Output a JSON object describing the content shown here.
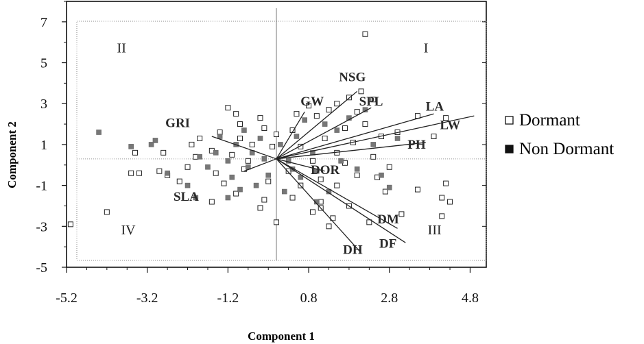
{
  "chart_data": {
    "type": "scatter",
    "xlabel": "Component 1",
    "ylabel": "Component 2",
    "xlim": [
      -5.2,
      5.2
    ],
    "ylim": [
      -5,
      8
    ],
    "x_ticks": [
      "-5.2",
      "-3.2",
      "-1.2",
      "0.8",
      "2.8",
      "4.8"
    ],
    "y_ticks": [
      "7",
      "5",
      "3",
      "1",
      "-1",
      "-3",
      "-5"
    ],
    "quadrant_labels": [
      {
        "text": "I",
        "x": 3.65,
        "y": 5.5
      },
      {
        "text": "II",
        "x": -3.95,
        "y": 5.5
      },
      {
        "text": "III",
        "x": 3.75,
        "y": -3.4
      },
      {
        "text": "IV",
        "x": -3.85,
        "y": -3.4
      }
    ],
    "vectors": [
      {
        "name": "NSG",
        "x": 2.0,
        "y": 3.6,
        "label_x": 1.55,
        "label_y": 4.1
      },
      {
        "name": "GW",
        "x": 0.7,
        "y": 2.6,
        "label_x": 0.6,
        "label_y": 2.9
      },
      {
        "name": "SPL",
        "x": 2.35,
        "y": 2.8,
        "label_x": 2.05,
        "label_y": 2.9
      },
      {
        "name": "LA",
        "x": 3.9,
        "y": 2.5,
        "label_x": 3.7,
        "label_y": 2.65
      },
      {
        "name": "LW",
        "x": 4.9,
        "y": 2.4,
        "label_x": 4.05,
        "label_y": 1.75
      },
      {
        "name": "PH",
        "x": 3.7,
        "y": 1.1,
        "label_x": 3.25,
        "label_y": 0.8
      },
      {
        "name": "DOR",
        "x": 1.2,
        "y": -0.3,
        "label_x": 0.85,
        "label_y": -0.45
      },
      {
        "name": "DM",
        "x": 3.0,
        "y": -3.1,
        "label_x": 2.5,
        "label_y": -2.85
      },
      {
        "name": "DF",
        "x": 3.2,
        "y": -3.8,
        "label_x": 2.55,
        "label_y": -4.05
      },
      {
        "name": "DH",
        "x": 2.1,
        "y": -4.3,
        "label_x": 1.65,
        "label_y": -4.35
      },
      {
        "name": "GRI",
        "x": -1.6,
        "y": 1.4,
        "label_x": -2.75,
        "label_y": 1.85
      },
      {
        "name": "SLA",
        "x": -0.8,
        "y": -0.3,
        "label_x": -2.55,
        "label_y": -1.75
      }
    ],
    "series": [
      {
        "name": "Dormant",
        "marker": "open-square",
        "points": [
          [
            2.2,
            6.4
          ],
          [
            2.1,
            3.6
          ],
          [
            2.4,
            3.2
          ],
          [
            1.8,
            3.3
          ],
          [
            1.5,
            3.0
          ],
          [
            0.8,
            2.9
          ],
          [
            1.3,
            2.7
          ],
          [
            -1.2,
            2.8
          ],
          [
            -1.0,
            2.5
          ],
          [
            0.5,
            2.5
          ],
          [
            1.0,
            2.4
          ],
          [
            2.0,
            2.6
          ],
          [
            3.5,
            2.4
          ],
          [
            4.2,
            2.3
          ],
          [
            -0.9,
            2.0
          ],
          [
            -0.4,
            2.3
          ],
          [
            -0.3,
            1.8
          ],
          [
            1.7,
            1.8
          ],
          [
            2.2,
            2.0
          ],
          [
            3.0,
            1.6
          ],
          [
            -1.4,
            1.6
          ],
          [
            -0.9,
            1.3
          ],
          [
            0.0,
            1.5
          ],
          [
            0.4,
            1.7
          ],
          [
            1.2,
            1.3
          ],
          [
            1.9,
            1.1
          ],
          [
            2.6,
            1.4
          ],
          [
            -1.9,
            1.3
          ],
          [
            -2.1,
            1.0
          ],
          [
            -1.6,
            0.7
          ],
          [
            -0.6,
            1.0
          ],
          [
            -0.1,
            0.9
          ],
          [
            0.6,
            0.9
          ],
          [
            1.5,
            0.6
          ],
          [
            2.4,
            0.4
          ],
          [
            3.9,
            1.4
          ],
          [
            -2.8,
            0.6
          ],
          [
            -2.0,
            0.4
          ],
          [
            -1.1,
            0.5
          ],
          [
            -0.7,
            0.2
          ],
          [
            0.9,
            0.2
          ],
          [
            1.7,
            0.1
          ],
          [
            2.8,
            -0.1
          ],
          [
            -3.5,
            0.6
          ],
          [
            -3.6,
            -0.4
          ],
          [
            -3.4,
            -0.4
          ],
          [
            -2.9,
            -0.3
          ],
          [
            -2.2,
            -0.1
          ],
          [
            -1.5,
            -0.4
          ],
          [
            -0.8,
            -0.2
          ],
          [
            0.3,
            -0.3
          ],
          [
            1.1,
            -0.7
          ],
          [
            2.0,
            -0.5
          ],
          [
            2.5,
            -0.6
          ],
          [
            -2.4,
            -0.8
          ],
          [
            -1.3,
            -0.9
          ],
          [
            -0.2,
            -0.8
          ],
          [
            0.6,
            -1.0
          ],
          [
            1.5,
            -1.0
          ],
          [
            2.7,
            -1.3
          ],
          [
            3.5,
            -1.2
          ],
          [
            4.2,
            -0.9
          ],
          [
            4.1,
            -1.6
          ],
          [
            4.3,
            -1.8
          ],
          [
            -1.0,
            -1.4
          ],
          [
            -0.3,
            -1.7
          ],
          [
            0.4,
            -1.6
          ],
          [
            1.1,
            -1.8
          ],
          [
            1.8,
            -2.0
          ],
          [
            -1.6,
            -1.8
          ],
          [
            0.9,
            -2.3
          ],
          [
            1.4,
            -2.6
          ],
          [
            2.3,
            -2.8
          ],
          [
            3.1,
            -2.4
          ],
          [
            4.1,
            -2.5
          ],
          [
            -4.2,
            -2.3
          ],
          [
            -5.1,
            -2.9
          ],
          [
            -0.4,
            -2.1
          ],
          [
            0.0,
            -2.8
          ],
          [
            1.3,
            -3.0
          ],
          [
            1.1,
            -2.1
          ],
          [
            -2.7,
            -0.5
          ]
        ]
      },
      {
        "name": "Non Dormant",
        "marker": "filled-square",
        "points": [
          [
            -4.4,
            1.6
          ],
          [
            -3.6,
            0.9
          ],
          [
            -3.0,
            1.2
          ],
          [
            -3.1,
            1.0
          ],
          [
            -2.7,
            -0.4
          ],
          [
            -2.2,
            -1.0
          ],
          [
            -1.9,
            0.4
          ],
          [
            -1.7,
            -0.1
          ],
          [
            -1.5,
            0.6
          ],
          [
            -1.4,
            1.4
          ],
          [
            -1.2,
            0.2
          ],
          [
            -1.1,
            -0.6
          ],
          [
            -1.0,
            1.0
          ],
          [
            -0.8,
            1.7
          ],
          [
            -0.7,
            -0.1
          ],
          [
            -0.6,
            0.6
          ],
          [
            -0.5,
            -1.0
          ],
          [
            -0.4,
            1.3
          ],
          [
            -0.3,
            0.3
          ],
          [
            -0.2,
            -0.5
          ],
          [
            0.1,
            1.0
          ],
          [
            0.3,
            0.2
          ],
          [
            0.4,
            -0.2
          ],
          [
            0.5,
            1.4
          ],
          [
            0.6,
            -0.6
          ],
          [
            0.7,
            2.2
          ],
          [
            0.9,
            0.6
          ],
          [
            1.0,
            -0.3
          ],
          [
            1.2,
            2.0
          ],
          [
            1.3,
            -1.3
          ],
          [
            1.5,
            1.7
          ],
          [
            1.6,
            0.2
          ],
          [
            1.8,
            2.3
          ],
          [
            2.0,
            -0.2
          ],
          [
            2.2,
            2.7
          ],
          [
            2.4,
            1.0
          ],
          [
            2.6,
            -0.5
          ],
          [
            2.8,
            -1.1
          ],
          [
            3.0,
            1.3
          ],
          [
            -2.0,
            -1.6
          ],
          [
            -1.2,
            -1.6
          ],
          [
            -0.9,
            -1.2
          ],
          [
            0.2,
            -1.3
          ],
          [
            1.0,
            -1.8
          ]
        ]
      }
    ],
    "legend": {
      "placement": "right",
      "entries": [
        {
          "symbol": "□",
          "label": "Dormant"
        },
        {
          "symbol": "■",
          "label": "Non Dormant"
        }
      ]
    }
  }
}
